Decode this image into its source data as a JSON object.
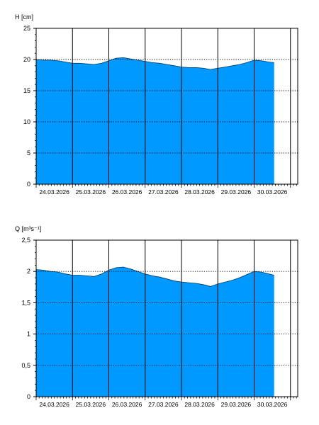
{
  "chart_data": [
    {
      "type": "area",
      "ylabel": "H [cm]",
      "y_ticks": [
        "0",
        "5",
        "10",
        "15",
        "20",
        "25"
      ],
      "ylim": [
        0,
        25
      ],
      "x_labels": [
        "24.03.2026",
        "25.03.2026",
        "26.03.2026",
        "27.03.2026",
        "28.03.2026",
        "29.03.2026",
        "30.03.2026"
      ],
      "x_range_days": [
        0,
        7.2
      ],
      "fill_color": "#0099ff",
      "grid": "dotted horizontal, solid vertical at day boundaries",
      "series": [
        {
          "x": [
            0.0,
            0.2,
            0.4,
            0.6,
            0.8,
            1.0,
            1.2,
            1.4,
            1.6,
            1.8,
            2.0,
            2.2,
            2.4,
            2.6,
            2.8,
            3.0,
            3.2,
            3.4,
            3.6,
            3.8,
            4.0,
            4.2,
            4.4,
            4.6,
            4.8,
            5.0,
            5.2,
            5.4,
            5.6,
            5.8,
            6.0,
            6.2,
            6.4,
            6.55
          ],
          "y": [
            20.0,
            19.9,
            19.9,
            19.8,
            19.6,
            19.4,
            19.4,
            19.3,
            19.2,
            19.4,
            19.8,
            20.2,
            20.3,
            20.1,
            19.9,
            19.7,
            19.5,
            19.4,
            19.2,
            19.0,
            18.8,
            18.7,
            18.7,
            18.6,
            18.4,
            18.6,
            18.8,
            19.0,
            19.2,
            19.5,
            19.9,
            19.8,
            19.6,
            19.5
          ]
        }
      ]
    },
    {
      "type": "area",
      "ylabel": "Q [m³s⁻¹]",
      "y_ticks": [
        "0",
        "0,5",
        "1",
        "1,5",
        "2",
        "2,5"
      ],
      "ylim": [
        0,
        2.5
      ],
      "x_labels": [
        "24.03.2026",
        "25.03.2026",
        "26.03.2026",
        "27.03.2026",
        "28.03.2026",
        "29.03.2026",
        "30.03.2026"
      ],
      "x_range_days": [
        0,
        7.2
      ],
      "fill_color": "#0099ff",
      "grid": "dotted horizontal, solid vertical at day boundaries",
      "series": [
        {
          "x": [
            0.0,
            0.2,
            0.4,
            0.6,
            0.8,
            1.0,
            1.2,
            1.4,
            1.6,
            1.8,
            2.0,
            2.2,
            2.4,
            2.6,
            2.8,
            3.0,
            3.2,
            3.4,
            3.6,
            3.8,
            4.0,
            4.2,
            4.4,
            4.6,
            4.8,
            5.0,
            5.2,
            5.4,
            5.6,
            5.8,
            6.0,
            6.2,
            6.4,
            6.55
          ],
          "y": [
            2.03,
            2.02,
            2.0,
            1.99,
            1.96,
            1.94,
            1.94,
            1.93,
            1.92,
            1.96,
            2.02,
            2.06,
            2.07,
            2.04,
            2.0,
            1.96,
            1.93,
            1.91,
            1.88,
            1.85,
            1.83,
            1.82,
            1.81,
            1.79,
            1.76,
            1.8,
            1.83,
            1.86,
            1.9,
            1.95,
            2.0,
            1.99,
            1.96,
            1.94
          ]
        }
      ]
    }
  ]
}
